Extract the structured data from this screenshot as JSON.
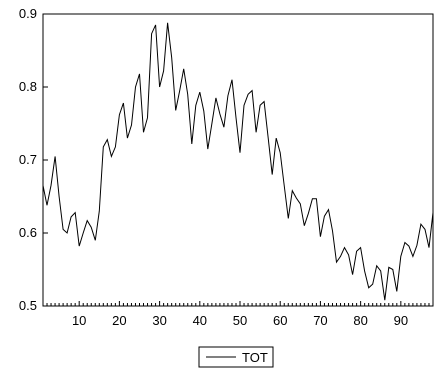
{
  "chart_data": {
    "type": "line",
    "title": "",
    "xlabel": "",
    "ylabel": "",
    "x_range": [
      1,
      98
    ],
    "ylim": [
      0.5,
      0.9
    ],
    "x_ticks": [
      10,
      20,
      30,
      40,
      50,
      60,
      70,
      80,
      90
    ],
    "x_tick_labels": [
      "10",
      "20",
      "30",
      "40",
      "50",
      "60",
      "70",
      "80",
      "90"
    ],
    "y_ticks": [
      0.5,
      0.6,
      0.7,
      0.8,
      0.9
    ],
    "y_tick_labels": [
      "0.5",
      "0.6",
      "0.7",
      "0.8",
      "0.9"
    ],
    "grid": false,
    "legend_position": "bottom-center",
    "series": [
      {
        "name": "TOT",
        "color": "#000000",
        "x": [
          1,
          2,
          3,
          4,
          5,
          6,
          7,
          8,
          9,
          10,
          11,
          12,
          13,
          14,
          15,
          16,
          17,
          18,
          19,
          20,
          21,
          22,
          23,
          24,
          25,
          26,
          27,
          28,
          29,
          30,
          31,
          32,
          33,
          34,
          35,
          36,
          37,
          38,
          39,
          40,
          41,
          42,
          43,
          44,
          45,
          46,
          47,
          48,
          49,
          50,
          51,
          52,
          53,
          54,
          55,
          56,
          57,
          58,
          59,
          60,
          61,
          62,
          63,
          64,
          65,
          66,
          67,
          68,
          69,
          70,
          71,
          72,
          73,
          74,
          75,
          76,
          77,
          78,
          79,
          80,
          81,
          82,
          83,
          84,
          85,
          86,
          87,
          88,
          89,
          90,
          91,
          92,
          93,
          94,
          95,
          96,
          97,
          98
        ],
        "values": [
          0.665,
          0.638,
          0.665,
          0.705,
          0.65,
          0.605,
          0.6,
          0.622,
          0.628,
          0.582,
          0.6,
          0.617,
          0.608,
          0.59,
          0.63,
          0.718,
          0.728,
          0.705,
          0.718,
          0.762,
          0.778,
          0.73,
          0.748,
          0.8,
          0.818,
          0.738,
          0.758,
          0.873,
          0.885,
          0.8,
          0.822,
          0.888,
          0.84,
          0.768,
          0.795,
          0.825,
          0.79,
          0.722,
          0.775,
          0.793,
          0.767,
          0.715,
          0.75,
          0.785,
          0.763,
          0.745,
          0.788,
          0.81,
          0.758,
          0.71,
          0.775,
          0.79,
          0.795,
          0.738,
          0.775,
          0.78,
          0.73,
          0.68,
          0.73,
          0.71,
          0.665,
          0.62,
          0.658,
          0.648,
          0.64,
          0.61,
          0.627,
          0.647,
          0.647,
          0.595,
          0.623,
          0.632,
          0.603,
          0.56,
          0.568,
          0.58,
          0.57,
          0.543,
          0.575,
          0.58,
          0.548,
          0.525,
          0.53,
          0.555,
          0.548,
          0.508,
          0.553,
          0.55,
          0.52,
          0.568,
          0.587,
          0.582,
          0.568,
          0.583,
          0.612,
          0.605,
          0.58,
          0.628
        ]
      }
    ]
  }
}
